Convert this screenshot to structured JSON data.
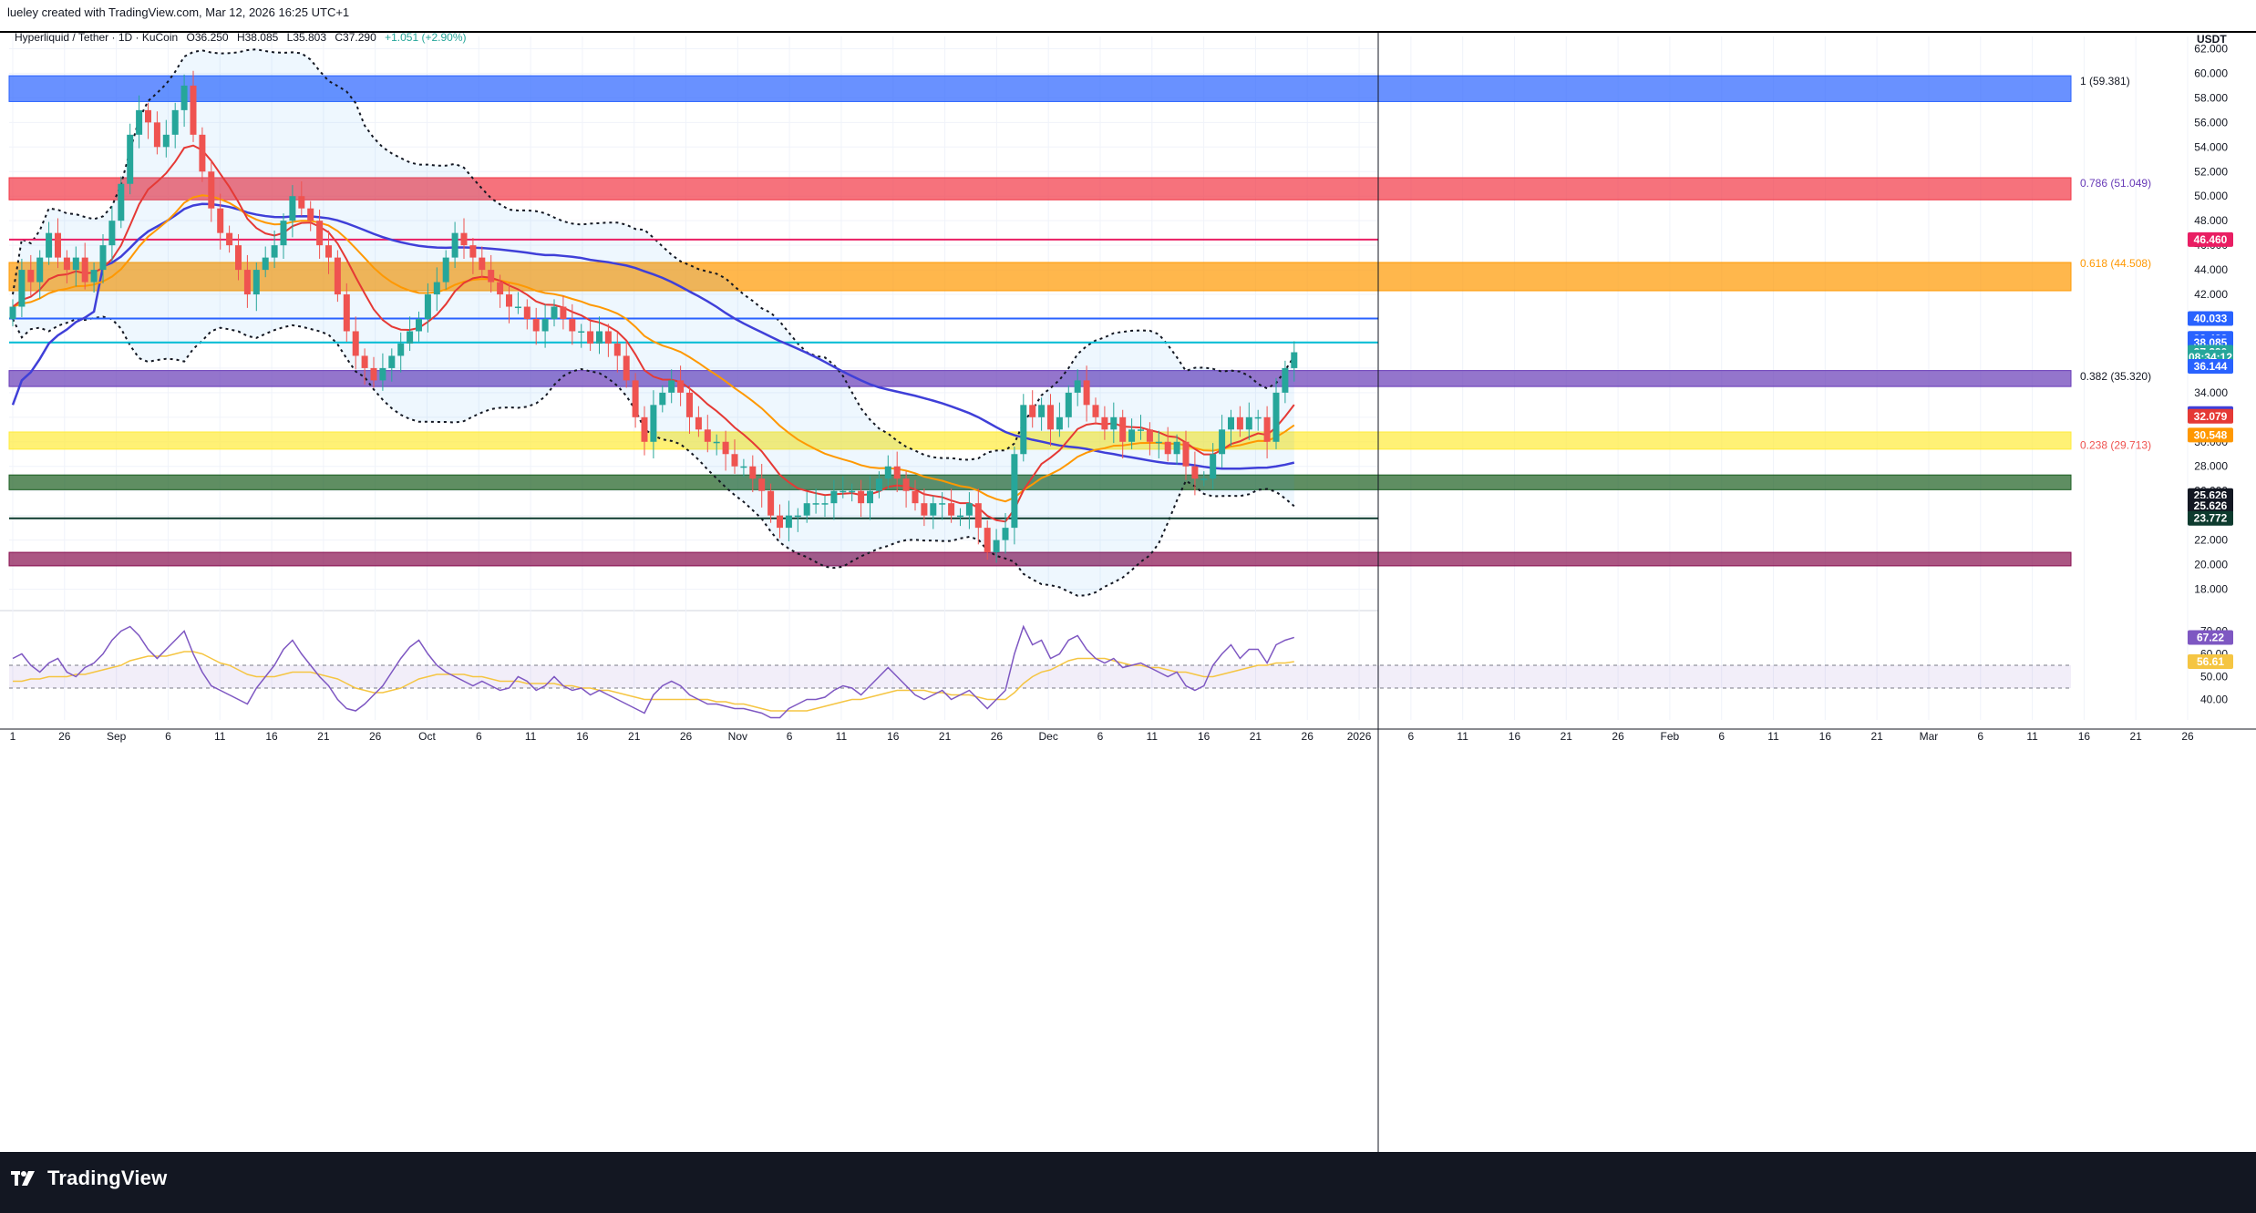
{
  "header": {
    "text": "lueley created with TradingView.com, Mar 12, 2026 16:25 UTC+1"
  },
  "symbol": {
    "name": "Hyperliquid / Tether · 1D · KuCoin",
    "open": "O36.250",
    "high": "H38.085",
    "low": "L35.803",
    "close": "C37.290",
    "change": "+1.051 (+2.90%)"
  },
  "currency": "USDT",
  "footer": {
    "brand": "TradingView"
  },
  "colors": {
    "up": "#26a69a",
    "down": "#ef5350",
    "blue_zone": "#2962ff",
    "red_zone": "#f23645",
    "orange_zone": "#ff9800",
    "purple_zone": "#673ab7",
    "yellow_zone": "#ffeb3b",
    "green_zone": "#1b5e20",
    "darkred_zone": "#880e4f",
    "sma_blue": "#3f3fd8",
    "ema_red": "#e53935",
    "ema_orange": "#ff9800",
    "rsi": "#7e57c2",
    "rsi_ma": "#f5c542"
  },
  "chart_data": [
    {
      "type": "candlestick",
      "title": "Hyperliquid / Tether · 1D · KuCoin",
      "y_axis_unit": "USDT",
      "ylim": [
        17,
        63
      ],
      "y_ticks": [
        18,
        20,
        22,
        24,
        26,
        28,
        30,
        32,
        34,
        36,
        38,
        40,
        42,
        44,
        46,
        48,
        50,
        52,
        54,
        56,
        58,
        60,
        62
      ],
      "x_tick_labels": [
        "1",
        "26",
        "Sep",
        "6",
        "11",
        "16",
        "21",
        "26",
        "Oct",
        "6",
        "11",
        "16",
        "21",
        "26",
        "Nov",
        "6",
        "11",
        "16",
        "21",
        "26",
        "Dec",
        "6",
        "11",
        "16",
        "21",
        "26",
        "2026",
        "6",
        "11",
        "16",
        "21",
        "26",
        "Feb",
        "6",
        "11",
        "16",
        "21",
        "Mar",
        "6",
        "11",
        "16",
        "21",
        "26"
      ],
      "closes_daily": [
        41,
        44,
        43,
        45,
        47,
        45,
        44,
        45,
        43,
        44,
        46,
        48,
        51,
        55,
        57,
        56,
        54,
        55,
        57,
        59,
        55,
        52,
        49,
        47,
        46,
        44,
        42,
        44,
        45,
        46,
        48,
        50,
        49,
        48,
        46,
        45,
        42,
        39,
        37,
        36,
        35,
        36,
        37,
        38,
        39,
        40,
        42,
        43,
        45,
        47,
        46,
        45,
        44,
        43,
        42,
        41,
        41,
        40,
        39,
        40,
        41,
        40,
        39,
        39,
        38,
        39,
        38,
        37,
        35,
        32,
        30,
        33,
        34,
        35,
        34,
        32,
        31,
        30,
        30,
        29,
        28,
        28,
        27,
        26,
        24,
        23,
        24,
        24,
        25,
        25,
        25,
        26,
        26,
        26,
        25,
        26,
        27,
        28,
        27,
        26,
        25,
        24,
        25,
        25,
        24,
        24,
        25,
        23,
        21,
        22,
        23,
        29,
        33,
        32,
        33,
        31,
        32,
        34,
        35,
        33,
        32,
        31,
        32,
        30,
        31,
        31,
        30,
        30,
        29,
        30,
        28,
        27,
        27,
        29,
        31,
        32,
        31,
        32,
        32,
        30,
        34,
        36,
        37.29
      ],
      "resistance_support_zones": [
        {
          "low": 57.7,
          "high": 59.8,
          "color": "blue"
        },
        {
          "low": 49.7,
          "high": 51.5,
          "color": "red"
        },
        {
          "low": 42.3,
          "high": 44.6,
          "color": "orange"
        },
        {
          "low": 34.5,
          "high": 35.8,
          "color": "purple"
        },
        {
          "low": 29.4,
          "high": 30.8,
          "color": "yellow"
        },
        {
          "low": 26.1,
          "high": 27.3,
          "color": "green"
        },
        {
          "low": 19.9,
          "high": 21.0,
          "color": "darkred"
        }
      ],
      "horizontal_lines": [
        {
          "value": 46.46,
          "color": "#e91e63"
        },
        {
          "value": 40.033,
          "color": "#2962ff"
        },
        {
          "value": 38.085,
          "color": "#00bcd4"
        },
        {
          "value": 23.772,
          "color": "#0d3b2e"
        }
      ],
      "fib_levels": [
        {
          "label": "1 (59.381)",
          "value": 59.381,
          "color": "#131722"
        },
        {
          "label": "0.786 (51.049)",
          "value": 51.049,
          "color": "#673ab7"
        },
        {
          "label": "0.618 (44.508)",
          "value": 44.508,
          "color": "#ff9800"
        },
        {
          "label": "0.382 (35.320)",
          "value": 35.32,
          "color": "#131722"
        },
        {
          "label": "0.238 (29.713)",
          "value": 29.713,
          "color": "#ef5350"
        }
      ],
      "price_tags": [
        {
          "label": "46.460",
          "value": 46.46,
          "color": "#e91e63"
        },
        {
          "label": "40.033",
          "value": 40.033,
          "color": "#2962ff"
        },
        {
          "label": "38.422",
          "value": 38.422,
          "color": "#2962ff"
        },
        {
          "label": "38.085",
          "value": 38.085,
          "color": "#2962ff"
        },
        {
          "label": "37.290",
          "value": 37.29,
          "color": "#26a69a"
        },
        {
          "label": "08:34:12",
          "value": 36.9,
          "color": "#26a69a"
        },
        {
          "label": "36.144",
          "value": 36.144,
          "color": "#2962ff"
        },
        {
          "label": "32.298",
          "value": 32.298,
          "color": "#3f3fd8"
        },
        {
          "label": "32.079",
          "value": 32.079,
          "color": "#e53935"
        },
        {
          "label": "30.548",
          "value": 30.548,
          "color": "#ff9800"
        },
        {
          "label": "25.626",
          "value": 25.626,
          "color": "#131722"
        },
        {
          "label": "25.626",
          "value": 24.8,
          "color": "#131722"
        },
        {
          "label": "23.772",
          "value": 23.772,
          "color": "#0d3b2e"
        }
      ],
      "last_price": 37.29
    },
    {
      "type": "line",
      "title": "RSI",
      "ylim": [
        35,
        75
      ],
      "y_ticks": [
        40,
        50,
        60,
        70
      ],
      "band": [
        45,
        55
      ],
      "rsi_daily": [
        58,
        60,
        55,
        52,
        56,
        58,
        52,
        50,
        54,
        56,
        60,
        66,
        70,
        72,
        68,
        62,
        58,
        62,
        66,
        70,
        60,
        52,
        46,
        44,
        42,
        40,
        38,
        45,
        50,
        55,
        62,
        66,
        60,
        55,
        50,
        46,
        40,
        36,
        35,
        38,
        42,
        46,
        52,
        58,
        63,
        66,
        60,
        55,
        52,
        50,
        48,
        46,
        48,
        46,
        44,
        45,
        50,
        48,
        44,
        46,
        50,
        46,
        44,
        45,
        42,
        44,
        42,
        40,
        38,
        36,
        34,
        42,
        46,
        48,
        46,
        42,
        40,
        38,
        38,
        37,
        36,
        36,
        35,
        34,
        32,
        32,
        36,
        38,
        40,
        40,
        41,
        44,
        46,
        45,
        42,
        46,
        50,
        54,
        50,
        46,
        42,
        40,
        42,
        44,
        40,
        42,
        44,
        40,
        36,
        40,
        44,
        60,
        72,
        64,
        66,
        58,
        60,
        66,
        68,
        62,
        58,
        56,
        58,
        54,
        55,
        56,
        54,
        52,
        50,
        52,
        46,
        44,
        46,
        55,
        60,
        64,
        58,
        62,
        62,
        56,
        64,
        66,
        67.22
      ],
      "rsi_ma_daily": [
        48,
        48,
        49,
        49,
        50,
        50,
        50,
        51,
        51,
        52,
        53,
        54,
        55,
        57,
        58,
        59,
        59,
        59,
        60,
        61,
        61,
        60,
        58,
        56,
        55,
        53,
        51,
        50,
        50,
        50,
        51,
        52,
        52,
        52,
        51,
        50,
        49,
        47,
        45,
        44,
        43,
        43,
        44,
        45,
        47,
        49,
        50,
        51,
        51,
        51,
        51,
        50,
        50,
        49,
        48,
        48,
        48,
        47,
        47,
        47,
        47,
        46,
        46,
        45,
        45,
        44,
        44,
        43,
        42,
        41,
        40,
        40,
        40,
        40,
        40,
        40,
        40,
        40,
        39,
        39,
        38,
        38,
        37,
        36,
        35,
        35,
        35,
        35,
        35,
        36,
        37,
        38,
        39,
        40,
        40,
        41,
        42,
        43,
        44,
        44,
        44,
        44,
        43,
        43,
        42,
        42,
        42,
        41,
        40,
        40,
        40,
        43,
        47,
        50,
        52,
        53,
        55,
        57,
        58,
        58,
        58,
        58,
        57,
        56,
        55,
        55,
        54,
        54,
        53,
        52,
        52,
        51,
        50,
        50,
        51,
        52,
        53,
        54,
        55,
        55,
        56,
        56,
        56.61
      ],
      "tags": [
        {
          "label": "67.22",
          "value": 67.22,
          "color": "#7e57c2"
        },
        {
          "label": "56.61",
          "value": 56.61,
          "color": "#f5c542"
        }
      ]
    }
  ]
}
